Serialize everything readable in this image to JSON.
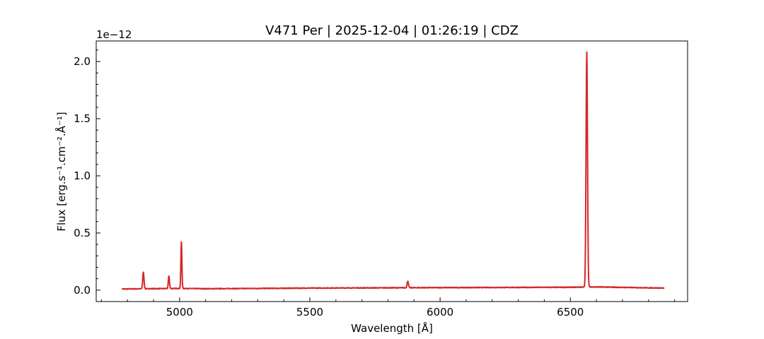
{
  "chart_data": {
    "type": "line",
    "title": "V471 Per | 2025-12-04 | 01:26:19 | CDZ",
    "xlabel": "Wavelength [Å]",
    "ylabel": "Flux [erg.s⁻¹.cm⁻².Å⁻¹]",
    "y_offset_label": "1e−12",
    "y_scale": 1e-12,
    "xlim": [
      4680,
      6950
    ],
    "ylim": [
      -0.1,
      2.18
    ],
    "x_major_ticks": [
      5000,
      5500,
      6000,
      6500
    ],
    "x_tick_labels": [
      "5000",
      "5500",
      "6000",
      "6500"
    ],
    "y_major_ticks": [
      0.0,
      0.5,
      1.0,
      1.5,
      2.0
    ],
    "y_tick_labels": [
      "0.0",
      "0.5",
      "1.0",
      "1.5",
      "2.0"
    ],
    "grid": false,
    "legend": "none",
    "line_color": "#d62728",
    "series": [
      {
        "continuum": [
          [
            4780,
            0.01
          ],
          [
            5000,
            0.015
          ],
          [
            5100,
            0.012
          ],
          [
            5500,
            0.018
          ],
          [
            6000,
            0.022
          ],
          [
            6500,
            0.025
          ],
          [
            6600,
            0.028
          ],
          [
            6860,
            0.018
          ]
        ],
        "emission_lines": [
          {
            "center": 4861,
            "peak": 0.155,
            "width": 2.5
          },
          {
            "center": 4959,
            "peak": 0.125,
            "width": 2.2
          },
          {
            "center": 5007,
            "peak": 0.42,
            "width": 2.0
          },
          {
            "center": 5876,
            "peak": 0.08,
            "width": 2.5
          },
          {
            "center": 6563,
            "peak": 2.085,
            "width": 2.8
          }
        ],
        "x_range": [
          4780,
          6860
        ]
      }
    ]
  }
}
